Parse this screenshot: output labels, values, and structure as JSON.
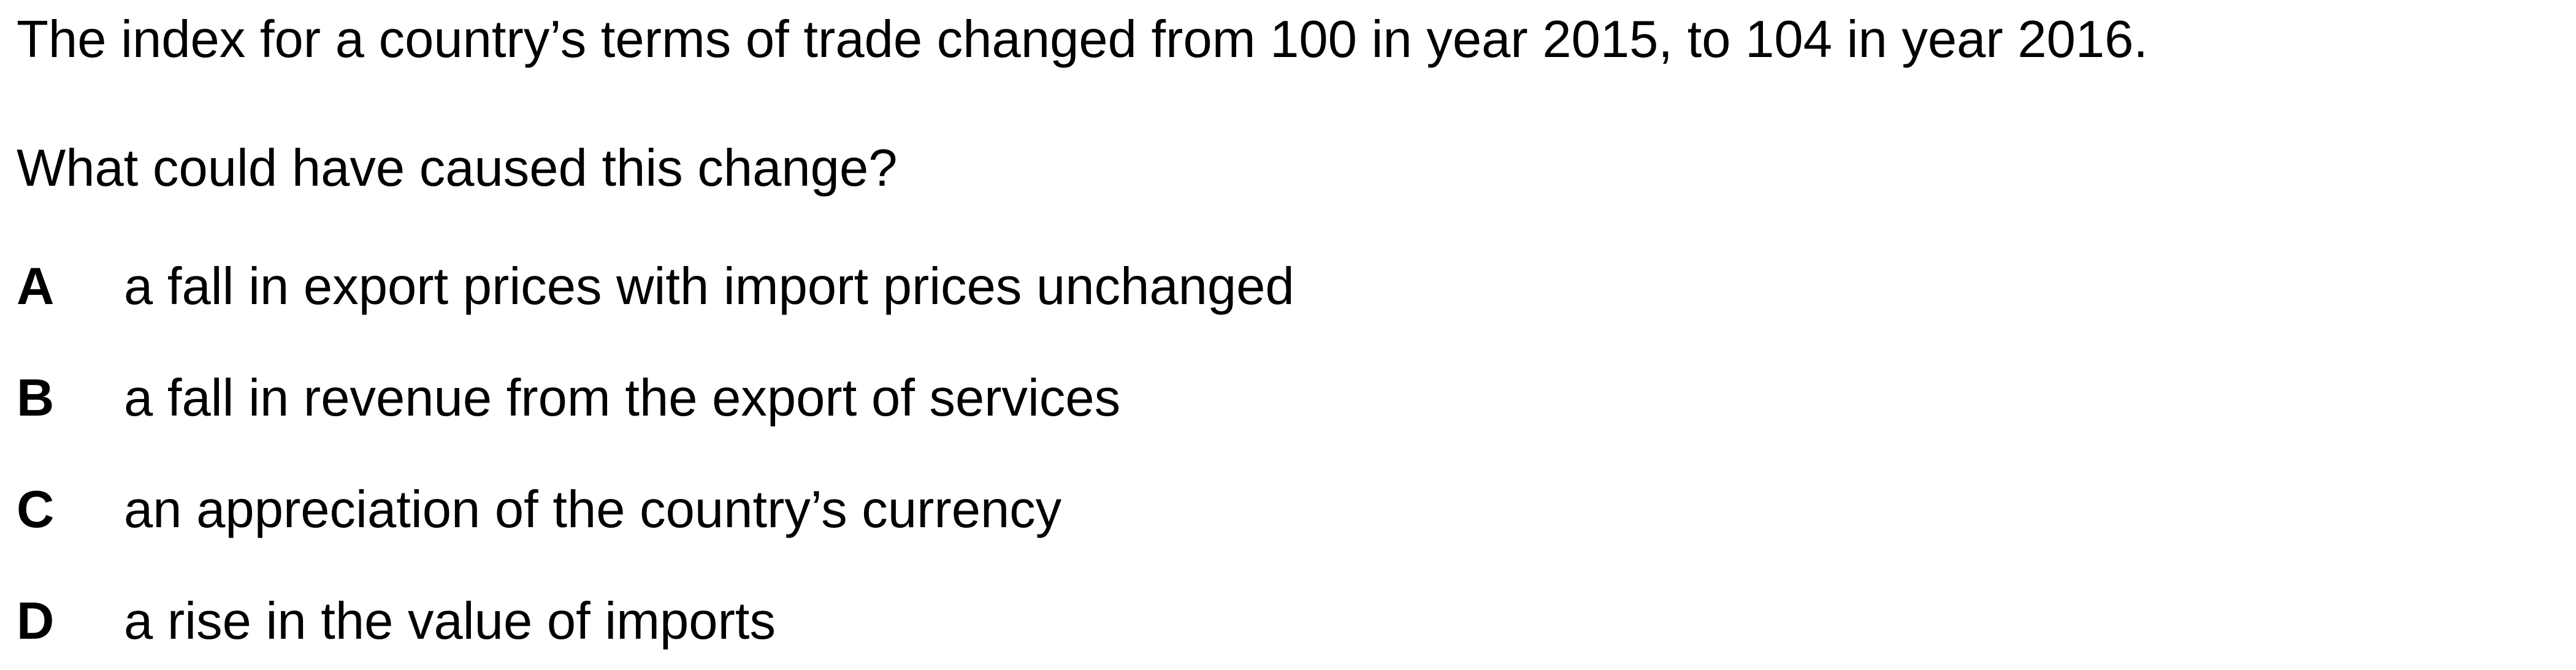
{
  "question": {
    "stem": "The index for a country’s terms of trade changed from 100 in year 2015, to 104 in year 2016.",
    "prompt": "What could have caused this change?",
    "options": [
      {
        "letter": "A",
        "text": "a fall in export prices with import prices unchanged"
      },
      {
        "letter": "B",
        "text": "a fall in revenue from the export of services"
      },
      {
        "letter": "C",
        "text": "an appreciation of the country’s currency"
      },
      {
        "letter": "D",
        "text": "a rise in the value of imports"
      }
    ]
  }
}
